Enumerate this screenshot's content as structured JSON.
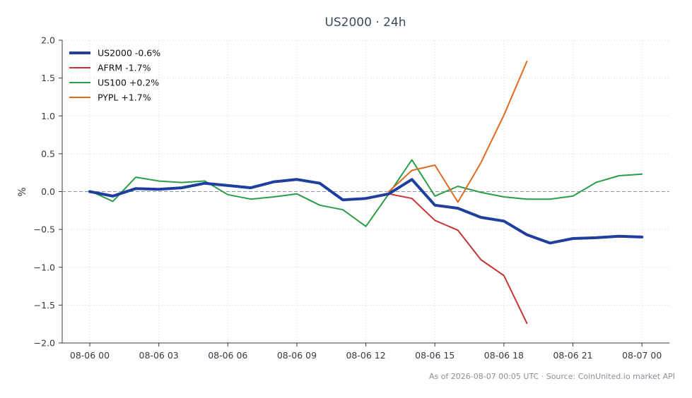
{
  "chart_data": {
    "type": "line",
    "title": "US2000 · 24h",
    "ylabel": "%",
    "xlabel": "",
    "ylim": [
      -2.0,
      2.0
    ],
    "yticks": [
      "2.0",
      "1.5",
      "1.0",
      "0.5",
      "0.0",
      "−0.5",
      "−1.0",
      "−1.5",
      "−2.0"
    ],
    "ytick_values": [
      2.0,
      1.5,
      1.0,
      0.5,
      0.0,
      -0.5,
      -1.0,
      -1.5,
      -2.0
    ],
    "xticks": [
      "08-06 00",
      "08-06 03",
      "08-06 06",
      "08-06 09",
      "08-06 12",
      "08-06 15",
      "08-06 18",
      "08-06 21",
      "08-07 00"
    ],
    "grid": true,
    "legend_position": "top-left",
    "reference_line": 0.0,
    "series": [
      {
        "name": "US2000 -0.6%",
        "color": "#1f3f9e",
        "values": [
          0.0,
          -0.06,
          0.04,
          0.03,
          0.05,
          0.11,
          0.08,
          0.05,
          0.13,
          0.16,
          0.11,
          -0.11,
          -0.09,
          -0.03,
          0.16,
          -0.18,
          -0.22,
          -0.34,
          -0.39,
          -0.57,
          -0.68,
          -0.62,
          -0.61,
          -0.59,
          -0.6
        ]
      },
      {
        "name": "AFRM -1.7%",
        "color": "#c83232",
        "start_index": 13,
        "values": [
          -0.03,
          -0.09,
          -0.38,
          -0.51,
          -0.9,
          -1.11,
          -1.74
        ]
      },
      {
        "name": "US100 +0.2%",
        "color": "#2a9d48",
        "values": [
          0.01,
          -0.13,
          0.19,
          0.14,
          0.12,
          0.14,
          -0.04,
          -0.1,
          -0.07,
          -0.03,
          -0.18,
          -0.24,
          -0.46,
          -0.03,
          0.42,
          -0.06,
          0.07,
          -0.01,
          -0.07,
          -0.1,
          -0.1,
          -0.06,
          0.12,
          0.21,
          0.23
        ]
      },
      {
        "name": "PYPL +1.7%",
        "color": "#e06a1f",
        "start_index": 13,
        "values": [
          0.0,
          0.28,
          0.35,
          -0.14,
          0.38,
          1.01,
          1.72
        ]
      }
    ]
  },
  "footer": "As of 2026-08-07 00:05 UTC · Source: CoinUnited.io market API"
}
